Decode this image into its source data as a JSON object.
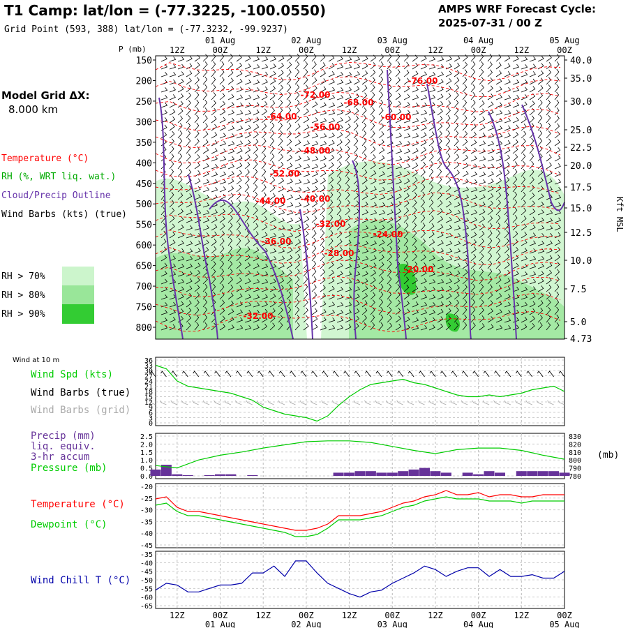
{
  "header": {
    "title": "T1 Camp:  lat/lon = (-77.3225, -100.0550)",
    "grid_point": "Grid Point (593, 388) lat/lon = (-77.3232, -99.9237)",
    "cycle_line1": "AMPS WRF Forecast Cycle:",
    "cycle_line2": "2025-07-31 / 00  Z"
  },
  "time_axis": {
    "hour_ticks": [
      "12Z",
      "00Z",
      "12Z",
      "00Z",
      "12Z",
      "00Z",
      "12Z",
      "00Z",
      "12Z",
      "00Z"
    ],
    "date_labels": [
      "01 Aug",
      "02 Aug",
      "03 Aug",
      "04 Aug",
      "05 Aug"
    ]
  },
  "panel_main": {
    "p_label": "P (mb)",
    "model_grid_label": "Model Grid ΔX:",
    "model_grid_value": "8.000 km",
    "legend": {
      "temperature": "Temperature (°C)",
      "rh": "RH (%, WRT liq. wat.)",
      "cloud": "Cloud/Precip Outline",
      "wind": "Wind Barbs (kts) (true)"
    },
    "rh_legend": [
      "RH > 70%",
      "RH > 80%",
      "RH > 90%"
    ],
    "rh_colors": [
      "#ccf5cc",
      "#99e699",
      "#33cc33"
    ],
    "pressure_ticks": [
      "150",
      "200",
      "250",
      "300",
      "350",
      "400",
      "450",
      "500",
      "550",
      "600",
      "650",
      "700",
      "750",
      "800"
    ],
    "height_ticks": [
      "40.0",
      "35.0",
      "30.0",
      "25.0",
      "22.5",
      "20.0",
      "17.5",
      "15.0",
      "12.5",
      "10.0",
      "7.5",
      "5.0",
      "4.73"
    ],
    "height_label": "Kft MSL",
    "temp_labels": [
      "-76.00",
      "-72.00",
      "-68.00",
      "-64.00",
      "-60.00",
      "-56.00",
      "-48.00",
      "-52.00",
      "-44.00",
      "-40.00",
      "-32.00",
      "-36.00",
      "-24.00",
      "-28.00",
      "-20.00",
      "-32.00"
    ]
  },
  "panel_wind": {
    "title": "Wind at 10 m",
    "legend": [
      "Wind Spd (kts)",
      "Wind Barbs (true)",
      "Wind Barbs (grid)"
    ],
    "y_ticks": [
      "36",
      "33",
      "30",
      "27",
      "24",
      "21",
      "18",
      "15",
      "12",
      "9",
      "6",
      "3",
      "0"
    ]
  },
  "panel_precip": {
    "legend": [
      "Precip (mm)",
      "liq. equiv.",
      "3-hr accum",
      "Pressure (mb)"
    ],
    "y_ticks_left": [
      "2.5",
      "2.0",
      "1.5",
      "1.0",
      "0.5",
      "0.0"
    ],
    "y_ticks_right": [
      "830",
      "820",
      "810",
      "800",
      "790",
      "780"
    ],
    "right_unit": "(mb)"
  },
  "panel_temp": {
    "legend": [
      "Temperature (°C)",
      "Dewpoint (°C)"
    ],
    "y_ticks": [
      "-20",
      "-25",
      "-30",
      "-35",
      "-40",
      "-45"
    ]
  },
  "panel_chill": {
    "legend": [
      "Wind Chill T (°C)"
    ],
    "y_ticks": [
      "-35",
      "-40",
      "-45",
      "-50",
      "-55",
      "-60",
      "-65"
    ]
  },
  "colors": {
    "temperature": "#ff0000",
    "dewpoint": "#00cc00",
    "wind_speed": "#00cc00",
    "precip": "#663399",
    "pressure": "#00cc00",
    "wind_chill": "#0000aa",
    "cloud_outline": "#6633aa",
    "grid_barbs": "#aaaaaa"
  },
  "chart_data": [
    {
      "type": "line",
      "title": "Wind at 10 m",
      "x": [
        "07-31 06Z",
        "07-31 09Z",
        "07-31 12Z",
        "07-31 15Z",
        "07-31 18Z",
        "07-31 21Z",
        "08-01 00Z",
        "08-01 03Z",
        "08-01 06Z",
        "08-01 09Z",
        "08-01 12Z",
        "08-01 15Z",
        "08-01 18Z",
        "08-01 21Z",
        "08-02 00Z",
        "08-02 03Z",
        "08-02 06Z",
        "08-02 09Z",
        "08-02 12Z",
        "08-02 15Z",
        "08-02 18Z",
        "08-02 21Z",
        "08-03 00Z",
        "08-03 03Z",
        "08-03 06Z",
        "08-03 09Z",
        "08-03 12Z",
        "08-03 15Z",
        "08-03 18Z",
        "08-03 21Z",
        "08-04 00Z",
        "08-04 03Z",
        "08-04 06Z",
        "08-04 09Z",
        "08-04 12Z",
        "08-04 15Z",
        "08-04 18Z",
        "08-04 21Z",
        "08-05 00Z"
      ],
      "ylim": [
        0,
        36
      ],
      "series": [
        {
          "name": "Wind Spd (kts)",
          "values": [
            33,
            31,
            24,
            21,
            20,
            19,
            18,
            17,
            15,
            13,
            9,
            7,
            5,
            4,
            3,
            1,
            4,
            10,
            15,
            19,
            22,
            23,
            24,
            25,
            23,
            22,
            20,
            18,
            16,
            15,
            15,
            16,
            15,
            16,
            17,
            19,
            20,
            21,
            18
          ]
        }
      ]
    },
    {
      "type": "bar",
      "title": "Precip (mm) liq. equiv. 3-hr accum",
      "ylim": [
        0,
        2.5
      ],
      "x": [
        "07-31 06Z",
        "07-31 09Z",
        "07-31 12Z",
        "07-31 15Z",
        "07-31 18Z",
        "07-31 21Z",
        "08-01 00Z",
        "08-01 03Z",
        "08-01 06Z",
        "08-01 09Z",
        "08-01 12Z",
        "08-01 15Z",
        "08-01 18Z",
        "08-01 21Z",
        "08-02 00Z",
        "08-02 03Z",
        "08-02 06Z",
        "08-02 09Z",
        "08-02 12Z",
        "08-02 15Z",
        "08-02 18Z",
        "08-02 21Z",
        "08-03 00Z",
        "08-03 03Z",
        "08-03 06Z",
        "08-03 09Z",
        "08-03 12Z",
        "08-03 15Z",
        "08-03 18Z",
        "08-03 21Z",
        "08-04 00Z",
        "08-04 03Z",
        "08-04 06Z",
        "08-04 09Z",
        "08-04 12Z",
        "08-04 15Z",
        "08-04 18Z",
        "08-04 21Z",
        "08-05 00Z"
      ],
      "series": [
        {
          "name": "Precip (mm)",
          "values": [
            0.4,
            0.7,
            0.1,
            0.05,
            0.0,
            0.05,
            0.1,
            0.1,
            0.0,
            0.05,
            0.0,
            0.0,
            0.0,
            0.0,
            0.0,
            0.0,
            0.0,
            0.2,
            0.2,
            0.3,
            0.3,
            0.2,
            0.2,
            0.3,
            0.4,
            0.5,
            0.3,
            0.2,
            0.0,
            0.2,
            0.1,
            0.3,
            0.2,
            0.0,
            0.3,
            0.3,
            0.3,
            0.3,
            0.2
          ]
        }
      ]
    },
    {
      "type": "line",
      "title": "Pressure (mb)",
      "ylim": [
        780,
        830
      ],
      "x": [
        "07-31 06Z",
        "07-31 12Z",
        "07-31 18Z",
        "08-01 00Z",
        "08-01 06Z",
        "08-01 12Z",
        "08-01 18Z",
        "08-02 00Z",
        "08-02 06Z",
        "08-02 12Z",
        "08-02 18Z",
        "08-03 00Z",
        "08-03 06Z",
        "08-03 12Z",
        "08-03 18Z",
        "08-04 00Z",
        "08-04 06Z",
        "08-04 12Z",
        "08-04 18Z",
        "08-05 00Z"
      ],
      "series": [
        {
          "name": "Pressure (mb)",
          "values": [
            793,
            790,
            800,
            806,
            810,
            815,
            819,
            823,
            824,
            824,
            822,
            817,
            812,
            808,
            813,
            815,
            815,
            812,
            806,
            801
          ]
        }
      ]
    },
    {
      "type": "line",
      "title": "Temperature / Dewpoint",
      "ylim": [
        -45,
        -17
      ],
      "x": [
        "07-31 06Z",
        "07-31 09Z",
        "07-31 12Z",
        "07-31 15Z",
        "07-31 18Z",
        "07-31 21Z",
        "08-01 00Z",
        "08-01 03Z",
        "08-01 06Z",
        "08-01 09Z",
        "08-01 12Z",
        "08-01 15Z",
        "08-01 18Z",
        "08-01 21Z",
        "08-02 00Z",
        "08-02 03Z",
        "08-02 06Z",
        "08-02 09Z",
        "08-02 12Z",
        "08-02 15Z",
        "08-02 18Z",
        "08-02 21Z",
        "08-03 00Z",
        "08-03 03Z",
        "08-03 06Z",
        "08-03 09Z",
        "08-03 12Z",
        "08-03 15Z",
        "08-03 18Z",
        "08-03 21Z",
        "08-04 00Z",
        "08-04 03Z",
        "08-04 06Z",
        "08-04 09Z",
        "08-04 12Z",
        "08-04 15Z",
        "08-04 18Z",
        "08-04 21Z",
        "08-05 00Z"
      ],
      "series": [
        {
          "name": "Temperature (°C)",
          "values": [
            -23,
            -22,
            -27,
            -29,
            -29,
            -30,
            -31,
            -32,
            -33,
            -34,
            -35,
            -36,
            -37,
            -38,
            -38,
            -37,
            -35,
            -31,
            -31,
            -31,
            -30,
            -29,
            -27,
            -25,
            -24,
            -22,
            -21,
            -19,
            -21,
            -21,
            -20,
            -22,
            -21,
            -21,
            -22,
            -22,
            -21,
            -21,
            -21
          ]
        },
        {
          "name": "Dewpoint (°C)",
          "values": [
            -26,
            -25,
            -29,
            -31,
            -31,
            -32,
            -33,
            -34,
            -35,
            -36,
            -37,
            -38,
            -39,
            -41,
            -41,
            -40,
            -37,
            -33,
            -33,
            -33,
            -32,
            -31,
            -29,
            -27,
            -26,
            -24,
            -23,
            -22,
            -23,
            -23,
            -23,
            -24,
            -24,
            -24,
            -25,
            -24,
            -24,
            -24,
            -24
          ]
        }
      ]
    },
    {
      "type": "line",
      "title": "Wind Chill T (°C)",
      "ylim": [
        -65,
        -35
      ],
      "x": [
        "07-31 06Z",
        "07-31 09Z",
        "07-31 12Z",
        "07-31 15Z",
        "07-31 18Z",
        "07-31 21Z",
        "08-01 00Z",
        "08-01 03Z",
        "08-01 06Z",
        "08-01 09Z",
        "08-01 12Z",
        "08-01 15Z",
        "08-01 18Z",
        "08-01 21Z",
        "08-02 00Z",
        "08-02 03Z",
        "08-02 06Z",
        "08-02 09Z",
        "08-02 12Z",
        "08-02 15Z",
        "08-02 18Z",
        "08-02 21Z",
        "08-03 00Z",
        "08-03 03Z",
        "08-03 06Z",
        "08-03 09Z",
        "08-03 12Z",
        "08-03 15Z",
        "08-03 18Z",
        "08-03 21Z",
        "08-04 00Z",
        "08-04 03Z",
        "08-04 06Z",
        "08-04 09Z",
        "08-04 12Z",
        "08-04 15Z",
        "08-04 18Z",
        "08-04 21Z",
        "08-05 00Z"
      ],
      "series": [
        {
          "name": "Wind Chill T (°C)",
          "values": [
            -56,
            -52,
            -53,
            -57,
            -57,
            -55,
            -53,
            -53,
            -52,
            -46,
            -46,
            -42,
            -48,
            -39,
            -39,
            -46,
            -52,
            -55,
            -58,
            -60,
            -57,
            -56,
            -52,
            -49,
            -46,
            -42,
            -44,
            -48,
            -45,
            -43,
            -43,
            -48,
            -44,
            -48,
            -48,
            -47,
            -49,
            -49,
            -45
          ]
        }
      ]
    }
  ]
}
